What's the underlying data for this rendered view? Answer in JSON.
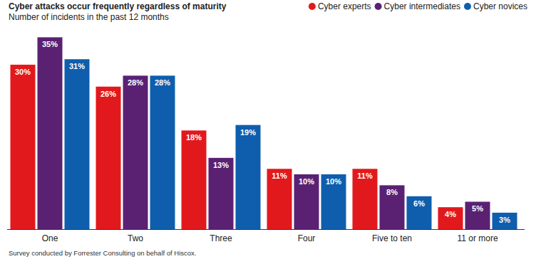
{
  "chart_data": {
    "type": "bar",
    "title": "Cyber attacks occur frequently regardless of maturity",
    "subtitle": "Number of incidents in the past 12 months",
    "annotations": [
      "Survey conducted by Forrester Consulting on behalf of Hiscox."
    ],
    "categories": [
      "One",
      "Two",
      "Three",
      "Four",
      "Five to ten",
      "11 or more"
    ],
    "series": [
      {
        "name": "Cyber experts",
        "color": "#e2191c",
        "values": [
          30,
          26,
          18,
          11,
          11,
          4
        ],
        "value_labels": [
          "30%",
          "26%",
          "18%",
          "11%",
          "11%",
          "4%"
        ]
      },
      {
        "name": "Cyber intermediates",
        "color": "#5a2173",
        "values": [
          35,
          28,
          13,
          10,
          8,
          5
        ],
        "value_labels": [
          "35%",
          "28%",
          "13%",
          "10%",
          "8%",
          "5%"
        ]
      },
      {
        "name": "Cyber novices",
        "color": "#0e5ead",
        "values": [
          31,
          28,
          19,
          10,
          6,
          3
        ],
        "value_labels": [
          "31%",
          "28%",
          "19%",
          "10%",
          "6%",
          "3%"
        ]
      }
    ],
    "ylim": [
      0,
      37
    ],
    "tick_labels": "x",
    "data_labels": true,
    "legend": "top-right",
    "grid": false
  }
}
